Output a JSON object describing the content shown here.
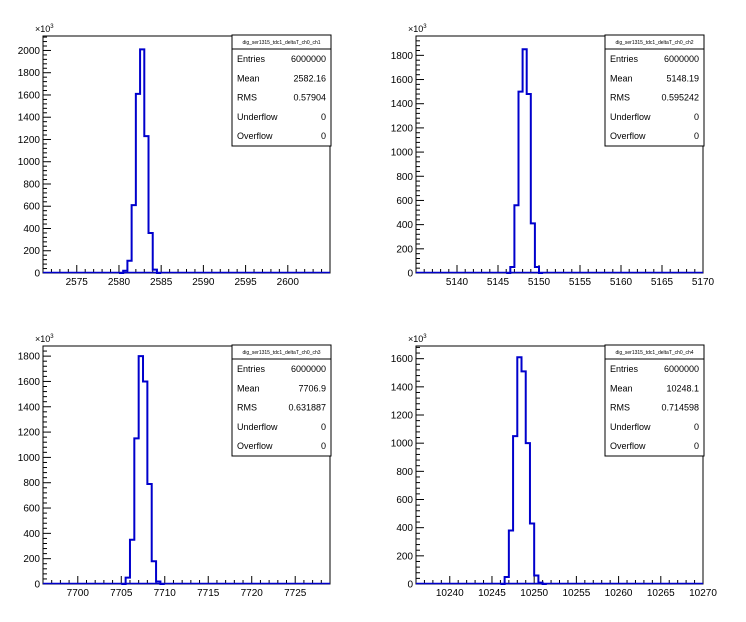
{
  "chart_data": [
    {
      "type": "bar",
      "title": "dig_ser1315_tdc1_deltaT_ch0_ch1",
      "exponent": "10",
      "exponent_power": "3",
      "xlim": [
        2571,
        2605
      ],
      "ylim": [
        0,
        2130
      ],
      "xticks": [
        2575,
        2580,
        2585,
        2590,
        2595,
        2600
      ],
      "yticks": [
        0,
        200,
        400,
        600,
        800,
        1000,
        1200,
        1400,
        1600,
        1800,
        2000
      ],
      "bin_width": 0.5,
      "bins": [
        [
          2580,
          0
        ],
        [
          2580.5,
          20
        ],
        [
          2581,
          110
        ],
        [
          2581.5,
          610
        ],
        [
          2582,
          1610
        ],
        [
          2582.5,
          2010
        ],
        [
          2583,
          1230
        ],
        [
          2583.5,
          360
        ],
        [
          2584,
          30
        ],
        [
          2584.5,
          0
        ]
      ],
      "stats": [
        {
          "label": "Entries",
          "value": "6000000"
        },
        {
          "label": "Mean",
          "value": "2582.16"
        },
        {
          "label": "RMS",
          "value": "0.57904"
        },
        {
          "label": "Underflow",
          "value": "0"
        },
        {
          "label": "Overflow",
          "value": "0"
        }
      ]
    },
    {
      "type": "bar",
      "title": "dig_ser1315_tdc1_deltaT_ch0_ch2",
      "exponent": "10",
      "exponent_power": "3",
      "xlim": [
        5135,
        5170
      ],
      "ylim": [
        0,
        1960
      ],
      "xticks": [
        5140,
        5145,
        5150,
        5155,
        5160,
        5165,
        5170
      ],
      "yticks": [
        0,
        200,
        400,
        600,
        800,
        1000,
        1200,
        1400,
        1600,
        1800
      ],
      "bin_width": 0.5,
      "bins": [
        [
          5146,
          0
        ],
        [
          5146.5,
          50
        ],
        [
          5147,
          560
        ],
        [
          5147.5,
          1500
        ],
        [
          5148,
          1850
        ],
        [
          5148.5,
          1480
        ],
        [
          5149,
          410
        ],
        [
          5149.5,
          50
        ],
        [
          5150,
          0
        ]
      ],
      "stats": [
        {
          "label": "Entries",
          "value": "6000000"
        },
        {
          "label": "Mean",
          "value": "5148.19"
        },
        {
          "label": "RMS",
          "value": "0.595242"
        },
        {
          "label": "Underflow",
          "value": "0"
        },
        {
          "label": "Overflow",
          "value": "0"
        }
      ]
    },
    {
      "type": "bar",
      "title": "dig_ser1315_tdc1_deltaT_ch0_ch3",
      "exponent": "10",
      "exponent_power": "3",
      "xlim": [
        7696,
        7729
      ],
      "ylim": [
        0,
        1880
      ],
      "xticks": [
        7700,
        7705,
        7710,
        7715,
        7720,
        7725
      ],
      "yticks": [
        0,
        200,
        400,
        600,
        800,
        1000,
        1200,
        1400,
        1600,
        1800
      ],
      "bin_width": 0.5,
      "bins": [
        [
          7705,
          0
        ],
        [
          7705.5,
          50
        ],
        [
          7706,
          350
        ],
        [
          7706.5,
          1150
        ],
        [
          7707,
          1800
        ],
        [
          7707.5,
          1600
        ],
        [
          7708,
          790
        ],
        [
          7708.5,
          180
        ],
        [
          7709,
          20
        ],
        [
          7709.5,
          0
        ]
      ],
      "stats": [
        {
          "label": "Entries",
          "value": "6000000"
        },
        {
          "label": "Mean",
          "value": "7706.9"
        },
        {
          "label": "RMS",
          "value": "0.631887"
        },
        {
          "label": "Underflow",
          "value": "0"
        },
        {
          "label": "Overflow",
          "value": "0"
        }
      ]
    },
    {
      "type": "bar",
      "title": "dig_ser1315_tdc1_deltaT_ch0_ch4",
      "exponent": "10",
      "exponent_power": "3",
      "xlim": [
        10236,
        10270
      ],
      "ylim": [
        0,
        1690
      ],
      "xticks": [
        10240,
        10245,
        10250,
        10255,
        10260,
        10265,
        10270
      ],
      "yticks": [
        0,
        200,
        400,
        600,
        800,
        1000,
        1200,
        1400,
        1600
      ],
      "bin_width": 0.5,
      "bins": [
        [
          10246,
          0
        ],
        [
          10246.5,
          50
        ],
        [
          10247,
          380
        ],
        [
          10247.5,
          1050
        ],
        [
          10248,
          1610
        ],
        [
          10248.5,
          1510
        ],
        [
          10249,
          1000
        ],
        [
          10249.5,
          430
        ],
        [
          10250,
          60
        ],
        [
          10250.5,
          10
        ],
        [
          10251,
          0
        ]
      ],
      "stats": [
        {
          "label": "Entries",
          "value": "6000000"
        },
        {
          "label": "Mean",
          "value": "10248.1"
        },
        {
          "label": "RMS",
          "value": "0.714598"
        },
        {
          "label": "Underflow",
          "value": "0"
        },
        {
          "label": "Overflow",
          "value": "0"
        }
      ]
    }
  ]
}
